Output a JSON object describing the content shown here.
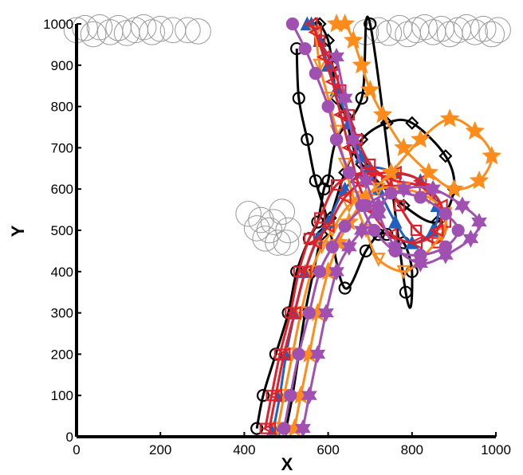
{
  "chart_data": {
    "type": "line",
    "title": "",
    "xlabel": "X",
    "ylabel": "Y",
    "xlim": [
      0,
      1000
    ],
    "ylim": [
      0,
      1000
    ],
    "xticks": [
      0,
      200,
      400,
      600,
      800,
      1000
    ],
    "yticks": [
      0,
      100,
      200,
      300,
      400,
      500,
      600,
      700,
      800,
      900,
      1000
    ],
    "grid": false,
    "legend": "none",
    "obstacles": {
      "color": "#999999",
      "radius": 30,
      "clusters": [
        {
          "centers": [
            [
              0,
              985
            ],
            [
              20,
              990
            ],
            [
              40,
              975
            ],
            [
              55,
              992
            ],
            [
              80,
              980
            ],
            [
              100,
              990
            ],
            [
              120,
              978
            ],
            [
              140,
              985
            ],
            [
              160,
              992
            ],
            [
              180,
              980
            ],
            [
              200,
              988
            ],
            [
              230,
              985
            ],
            [
              265,
              985
            ],
            [
              290,
              982
            ]
          ]
        },
        {
          "centers": [
            [
              410,
              540
            ],
            [
              430,
              505
            ],
            [
              450,
              480
            ],
            [
              470,
              520
            ],
            [
              490,
              545
            ],
            [
              505,
              500
            ],
            [
              480,
              470
            ],
            [
              440,
              525
            ],
            [
              460,
              500
            ],
            [
              500,
              470
            ]
          ]
        },
        {
          "centers": [
            [
              690,
              980
            ],
            [
              720,
              985
            ],
            [
              745,
              978
            ],
            [
              770,
              990
            ],
            [
              790,
              975
            ],
            [
              810,
              985
            ],
            [
              830,
              992
            ],
            [
              850,
              980
            ],
            [
              870,
              988
            ],
            [
              890,
              975
            ],
            [
              910,
              985
            ],
            [
              930,
              992
            ],
            [
              950,
              980
            ],
            [
              970,
              988
            ],
            [
              990,
              975
            ],
            [
              1005,
              985
            ]
          ]
        }
      ]
    },
    "series": [
      {
        "marker": "circle",
        "color": "#000000",
        "x": [
          430,
          445,
          475,
          505,
          525,
          555,
          575,
          590,
          600,
          620,
          680,
          700,
          785,
          800,
          780,
          740,
          720,
          690,
          640,
          600,
          570,
          550,
          530,
          525
        ],
        "y": [
          20,
          100,
          200,
          300,
          400,
          480,
          520,
          600,
          620,
          720,
          820,
          1000,
          350,
          400,
          470,
          490,
          490,
          450,
          360,
          520,
          620,
          720,
          820,
          940
        ]
      },
      {
        "marker": "diamond",
        "color": "#000000",
        "x": [
          500,
          515,
          530,
          545,
          565,
          585,
          605,
          640,
          680,
          740,
          800,
          880,
          900,
          860,
          780,
          680,
          660,
          640,
          620,
          610,
          600,
          580,
          570
        ],
        "y": [
          20,
          100,
          200,
          300,
          400,
          490,
          530,
          640,
          720,
          760,
          760,
          680,
          600,
          520,
          560,
          660,
          700,
          780,
          820,
          900,
          960,
          1000,
          1000
        ]
      },
      {
        "marker": "triangle-up",
        "color": "#2060c0",
        "x": [
          470,
          485,
          500,
          520,
          545,
          575,
          600,
          640,
          700,
          760,
          820,
          860,
          850,
          800,
          760,
          720,
          680,
          650,
          620,
          600,
          580,
          560,
          550
        ],
        "y": [
          20,
          100,
          200,
          300,
          400,
          480,
          520,
          600,
          650,
          640,
          620,
          560,
          500,
          470,
          520,
          600,
          680,
          760,
          840,
          900,
          960,
          1000,
          1000
        ]
      },
      {
        "marker": "square",
        "color": "#e0202a",
        "x": [
          450,
          465,
          485,
          510,
          530,
          555,
          580,
          620,
          690,
          760,
          830,
          880,
          860,
          810,
          770,
          740,
          700,
          670,
          650,
          630,
          610,
          580
        ],
        "y": [
          20,
          100,
          200,
          300,
          400,
          480,
          530,
          610,
          640,
          620,
          600,
          520,
          470,
          500,
          560,
          620,
          660,
          720,
          780,
          840,
          900,
          960
        ]
      },
      {
        "marker": "triangle-down",
        "color": "#ff8c1a",
        "x": [
          480,
          495,
          515,
          535,
          560,
          585,
          610,
          650,
          720,
          780,
          840,
          880,
          870,
          820,
          780,
          720,
          690,
          660,
          640,
          620,
          600,
          580,
          570
        ],
        "y": [
          20,
          100,
          200,
          300,
          400,
          460,
          500,
          560,
          600,
          600,
          580,
          540,
          490,
          430,
          400,
          430,
          500,
          580,
          660,
          740,
          820,
          900,
          980
        ]
      },
      {
        "marker": "left-triangle",
        "color": "#e0202a",
        "x": [
          460,
          475,
          495,
          520,
          545,
          570,
          600,
          640,
          700,
          760,
          820,
          870,
          860,
          810,
          750,
          700,
          670,
          650,
          630,
          610,
          590,
          570,
          560
        ],
        "y": [
          20,
          100,
          200,
          300,
          400,
          470,
          510,
          580,
          630,
          640,
          620,
          560,
          500,
          470,
          490,
          550,
          620,
          700,
          780,
          860,
          920,
          980,
          1000
        ]
      },
      {
        "marker": "star",
        "color": "#ff8c1a",
        "x": [
          520,
          535,
          555,
          575,
          600,
          625,
          650,
          690,
          750,
          820,
          890,
          950,
          990,
          960,
          900,
          840,
          780,
          730,
          700,
          680,
          660,
          640,
          620
        ],
        "y": [
          20,
          100,
          200,
          300,
          400,
          470,
          520,
          580,
          640,
          720,
          770,
          740,
          680,
          620,
          600,
          640,
          700,
          780,
          840,
          900,
          960,
          1000,
          1000
        ]
      },
      {
        "marker": "hexagram",
        "color": "#a050b0",
        "x": [
          540,
          555,
          575,
          595,
          620,
          650,
          680,
          720,
          780,
          850,
          920,
          960,
          940,
          880,
          820,
          760,
          720,
          690,
          660,
          640,
          620
        ],
        "y": [
          20,
          100,
          200,
          300,
          400,
          460,
          500,
          560,
          600,
          600,
          560,
          520,
          480,
          440,
          420,
          460,
          540,
          620,
          720,
          820,
          920
        ]
      },
      {
        "marker": "circle",
        "color": "#a050b0",
        "x": [
          495,
          510,
          530,
          555,
          580,
          610,
          640,
          690,
          750,
          820,
          880,
          910,
          880,
          820,
          760,
          710,
          680,
          650,
          620,
          600,
          570,
          545,
          515
        ],
        "y": [
          20,
          100,
          200,
          300,
          400,
          460,
          510,
          560,
          590,
          580,
          540,
          500,
          460,
          440,
          450,
          500,
          560,
          640,
          720,
          800,
          880,
          940,
          1000
        ]
      }
    ]
  }
}
